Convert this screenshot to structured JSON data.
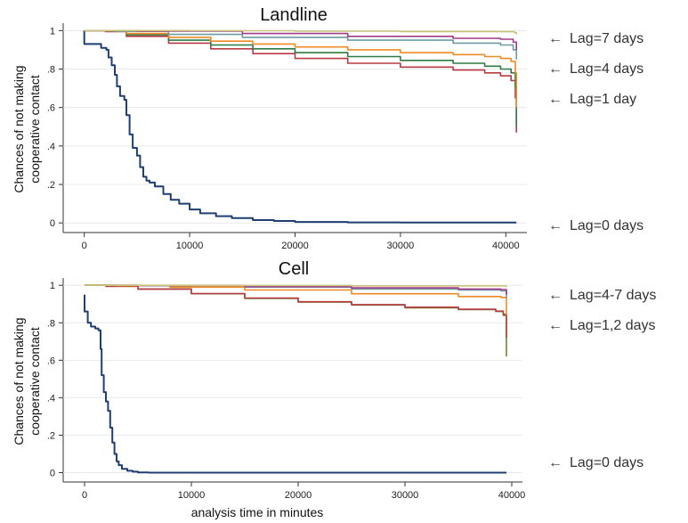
{
  "chart_data": [
    {
      "type": "line",
      "title": "Landline",
      "ylabel_lines": [
        "Chances of not making",
        "cooperative contact"
      ],
      "xlabel": "",
      "xlim": [
        -2000,
        42000
      ],
      "ylim": [
        -0.05,
        1.02
      ],
      "xticks": [
        0,
        10000,
        20000,
        30000,
        40000
      ],
      "xtick_labels": [
        "0",
        "10000",
        "20000",
        "30000",
        "40000"
      ],
      "yticks": [
        0,
        0.2,
        0.4,
        0.6,
        0.8,
        1
      ],
      "ytick_labels": [
        "0",
        ".2",
        ".4",
        ".6",
        ".8",
        "1"
      ],
      "grid": true,
      "series": [
        {
          "color": "#1f3f73",
          "x": [
            0,
            1,
            1500,
            1600,
            2100,
            2300,
            2600,
            2900,
            3100,
            3400,
            3800,
            4000,
            4300,
            4600,
            5000,
            5300,
            5600,
            5900,
            6200,
            6700,
            7500,
            8200,
            9000,
            10000,
            11000,
            12500,
            14000,
            16000,
            18000,
            20000,
            25000,
            30000,
            41000
          ],
          "y": [
            1,
            0.93,
            0.93,
            0.91,
            0.9,
            0.86,
            0.82,
            0.77,
            0.71,
            0.66,
            0.64,
            0.56,
            0.46,
            0.39,
            0.35,
            0.29,
            0.24,
            0.22,
            0.21,
            0.19,
            0.15,
            0.12,
            0.1,
            0.07,
            0.05,
            0.035,
            0.025,
            0.015,
            0.01,
            0.005,
            0.003,
            0.002,
            0.002
          ]
        },
        {
          "color": "#b83a44",
          "x": [
            0,
            2000,
            4000,
            8000,
            12000,
            16000,
            20000,
            25000,
            30000,
            35000,
            38000,
            39500,
            40500,
            40900,
            41000
          ],
          "y": [
            1,
            0.995,
            0.97,
            0.935,
            0.905,
            0.88,
            0.855,
            0.83,
            0.81,
            0.795,
            0.78,
            0.765,
            0.74,
            0.65,
            0.47
          ]
        },
        {
          "color": "#2f7a44",
          "x": [
            0,
            2000,
            4000,
            8000,
            12000,
            16000,
            20000,
            25000,
            30000,
            35000,
            38000,
            39500,
            40500,
            40900,
            41000
          ],
          "y": [
            1,
            0.997,
            0.978,
            0.95,
            0.925,
            0.905,
            0.885,
            0.865,
            0.845,
            0.83,
            0.815,
            0.8,
            0.78,
            0.7,
            0.5
          ]
        },
        {
          "color": "#f08a24",
          "x": [
            0,
            2000,
            4000,
            8000,
            12000,
            16000,
            20000,
            25000,
            30000,
            35000,
            38000,
            39500,
            40500,
            40900,
            41000
          ],
          "y": [
            1,
            0.998,
            0.985,
            0.965,
            0.945,
            0.93,
            0.915,
            0.9,
            0.885,
            0.875,
            0.865,
            0.855,
            0.84,
            0.78,
            0.6
          ]
        },
        {
          "color": "#6f9aa3",
          "x": [
            0,
            3000,
            8000,
            15000,
            25000,
            35000,
            39500,
            40700,
            41000
          ],
          "y": [
            1,
            0.996,
            0.98,
            0.965,
            0.95,
            0.935,
            0.925,
            0.9,
            0.85
          ]
        },
        {
          "color": "#a23a8a",
          "x": [
            0,
            5000,
            15000,
            25000,
            35000,
            39500,
            40700,
            41000
          ],
          "y": [
            1,
            0.997,
            0.985,
            0.97,
            0.96,
            0.955,
            0.94,
            0.9
          ]
        },
        {
          "color": "#c9c27a",
          "x": [
            0,
            10000,
            20000,
            30000,
            39500,
            40800,
            41000
          ],
          "y": [
            1,
            0.999,
            0.997,
            0.995,
            0.994,
            0.99,
            0.98
          ]
        }
      ],
      "annotations": [
        "Lag=7 days",
        "Lag=4 days",
        "Lag=1 day",
        "Lag=0 days"
      ]
    },
    {
      "type": "line",
      "title": "Cell",
      "ylabel_lines": [
        "Chances of not making",
        "cooperative contact"
      ],
      "xlabel": "analysis time in minutes",
      "xlim": [
        -2000,
        41000
      ],
      "ylim": [
        -0.05,
        1.02
      ],
      "xticks": [
        0,
        10000,
        20000,
        30000,
        40000
      ],
      "xtick_labels": [
        "0",
        "10000",
        "20000",
        "30000",
        "40000"
      ],
      "yticks": [
        0,
        0.2,
        0.4,
        0.6,
        0.8,
        1
      ],
      "ytick_labels": [
        "0",
        ".2",
        ".4",
        ".6",
        ".8",
        "1"
      ],
      "grid": true,
      "series": [
        {
          "color": "#1f3f73",
          "x": [
            0,
            1,
            300,
            600,
            1000,
            1300,
            1500,
            1600,
            1800,
            2000,
            2200,
            2400,
            2600,
            2800,
            3000,
            3200,
            3500,
            4000,
            4500,
            5000,
            6000,
            10000,
            20000,
            30000,
            39500
          ],
          "y": [
            0.95,
            0.86,
            0.8,
            0.78,
            0.77,
            0.76,
            0.66,
            0.52,
            0.43,
            0.38,
            0.33,
            0.24,
            0.16,
            0.1,
            0.06,
            0.04,
            0.02,
            0.01,
            0.005,
            0.001,
            0.0,
            0.0,
            0.0,
            0.0,
            0.0
          ]
        },
        {
          "color": "#6a8a30",
          "x": [
            0,
            2000,
            5000,
            10000,
            15000,
            20000,
            25000,
            30000,
            35000,
            38500,
            39200,
            39500
          ],
          "y": [
            1,
            0.995,
            0.98,
            0.955,
            0.93,
            0.91,
            0.895,
            0.88,
            0.87,
            0.86,
            0.84,
            0.62
          ]
        },
        {
          "color": "#b83a44",
          "x": [
            0,
            2000,
            5000,
            10000,
            15000,
            20000,
            25000,
            30000,
            35000,
            38500,
            39200,
            39500
          ],
          "y": [
            1,
            0.995,
            0.98,
            0.956,
            0.932,
            0.912,
            0.897,
            0.883,
            0.872,
            0.862,
            0.845,
            0.72
          ]
        },
        {
          "color": "#f08a24",
          "x": [
            0,
            3000,
            8000,
            15000,
            25000,
            35000,
            39000,
            39500
          ],
          "y": [
            1,
            0.998,
            0.99,
            0.975,
            0.955,
            0.94,
            0.935,
            0.84
          ]
        },
        {
          "color": "#6f9aa3",
          "x": [
            0,
            5000,
            15000,
            25000,
            35000,
            39000,
            39500
          ],
          "y": [
            1,
            0.998,
            0.99,
            0.98,
            0.975,
            0.97,
            0.93
          ]
        },
        {
          "color": "#a23a8a",
          "x": [
            0,
            5000,
            15000,
            25000,
            35000,
            39000,
            39500
          ],
          "y": [
            1,
            0.999,
            0.993,
            0.986,
            0.98,
            0.977,
            0.95
          ]
        },
        {
          "color": "#c9c27a",
          "x": [
            0,
            10000,
            25000,
            39500
          ],
          "y": [
            1,
            0.999,
            0.997,
            0.99
          ]
        }
      ],
      "annotations": [
        "Lag=4-7 days",
        "Lag=1,2 days",
        "Lag=0 days"
      ]
    }
  ]
}
